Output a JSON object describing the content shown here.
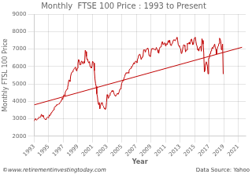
{
  "chart_data": {
    "type": "line",
    "title": "Monthly  FTSE 100 Price : 1993 to Present",
    "x_label": "Year",
    "y_label": "Monthly FTSL 100 Price",
    "annotations": [
      "©www.retirementinvestingtoday.com",
      "Data Source: Yahoo"
    ],
    "xlim": [
      1993,
      2022
    ],
    "xticks": [
      1993,
      1995,
      1997,
      1999,
      2001,
      2003,
      2005,
      2007,
      2009,
      2011,
      2013,
      2015,
      2017,
      2019,
      2021
    ],
    "ylim": [
      2000,
      9000
    ],
    "yticks": [
      2000,
      3000,
      4000,
      5000,
      6000,
      7000,
      8000,
      9000
    ],
    "grid": true,
    "series": [
      {
        "color": "#c00000",
        "x": [
          1993,
          1993.0833,
          1993.1667,
          1993.25,
          1993.3333,
          1993.4167,
          1993.5,
          1993.5833,
          1993.6667,
          1993.75,
          1993.8333,
          1993.9167,
          1994,
          1994.0833,
          1994.1667,
          1994.25,
          1994.3333,
          1994.4167,
          1994.5,
          1994.5833,
          1994.6667,
          1994.75,
          1994.8333,
          1994.9167,
          1995,
          1995.0833,
          1995.1667,
          1995.25,
          1995.3333,
          1995.4167,
          1995.5,
          1995.5833,
          1995.6667,
          1995.75,
          1995.8333,
          1995.9167,
          1996,
          1996.0833,
          1996.1667,
          1996.25,
          1996.3333,
          1996.4167,
          1996.5,
          1996.5833,
          1996.6667,
          1996.75,
          1996.8333,
          1996.9167,
          1997,
          1997.0833,
          1997.1667,
          1997.25,
          1997.3333,
          1997.4167,
          1997.5,
          1997.5833,
          1997.6667,
          1997.75,
          1997.8333,
          1997.9167,
          1998,
          1998.0833,
          1998.1667,
          1998.25,
          1998.3333,
          1998.4167,
          1998.5,
          1998.5833,
          1998.6667,
          1998.75,
          1998.8333,
          1998.9167,
          1999,
          1999.0833,
          1999.1667,
          1999.25,
          1999.3333,
          1999.4167,
          1999.5,
          1999.5833,
          1999.6667,
          1999.75,
          1999.8333,
          1999.9167,
          2000,
          2000.0833,
          2000.1667,
          2000.25,
          2000.3333,
          2000.4167,
          2000.5,
          2000.5833,
          2000.6667,
          2000.75,
          2000.8333,
          2000.9167,
          2001,
          2001.0833,
          2001.1667,
          2001.25,
          2001.3333,
          2001.4167,
          2001.5,
          2001.5833,
          2001.6667,
          2001.75,
          2001.8333,
          2001.9167,
          2002,
          2002.0833,
          2002.1667,
          2002.25,
          2002.3333,
          2002.4167,
          2002.5,
          2002.5833,
          2002.6667,
          2002.75,
          2002.8333,
          2002.9167,
          2003,
          2003.0833,
          2003.1667,
          2003.25,
          2003.3333,
          2003.4167,
          2003.5,
          2003.5833,
          2003.6667,
          2003.75,
          2003.8333,
          2003.9167,
          2004,
          2004.0833,
          2004.1667,
          2004.25,
          2004.3333,
          2004.4167,
          2004.5,
          2004.5833,
          2004.6667,
          2004.75,
          2004.8333,
          2004.9167,
          2005,
          2005.0833,
          2005.1667,
          2005.25,
          2005.3333,
          2005.4167,
          2005.5,
          2005.5833,
          2005.6667,
          2005.75,
          2005.8333,
          2005.9167,
          2006,
          2006.0833,
          2006.1667,
          2006.25,
          2006.3333,
          2006.4167,
          2006.5,
          2006.5833,
          2006.6667,
          2006.75,
          2006.8333,
          2006.9167,
          2007,
          2007.0833,
          2007.1667,
          2007.25,
          2007.3333,
          2007.4167,
          2007.5,
          2007.5833,
          2007.6667,
          2007.75,
          2007.8333,
          2007.9167,
          2008,
          2008.0833,
          2008.1667,
          2008.25,
          2008.3333,
          2008.4167,
          2008.5,
          2008.5833,
          2008.6667,
          2008.75,
          2008.8333,
          2008.9167,
          2009,
          2009.0833,
          2009.1667,
          2009.25,
          2009.3333,
          2009.4167,
          2009.5,
          2009.5833,
          2009.6667,
          2009.75,
          2009.8333,
          2009.9167,
          2010,
          2010.0833,
          2010.1667,
          2010.25,
          2010.3333,
          2010.4167,
          2010.5,
          2010.5833,
          2010.6667,
          2010.75,
          2010.8333,
          2010.9167,
          2011,
          2011.0833,
          2011.1667,
          2011.25,
          2011.3333,
          2011.4167,
          2011.5,
          2011.5833,
          2011.6667,
          2011.75,
          2011.8333,
          2011.9167,
          2012,
          2012.0833,
          2012.1667,
          2012.25,
          2012.3333,
          2012.4167,
          2012.5,
          2012.5833,
          2012.6667,
          2012.75,
          2012.8333,
          2012.9167,
          2013,
          2013.0833,
          2013.1667,
          2013.25,
          2013.3333,
          2013.4167,
          2013.5,
          2013.5833,
          2013.6667,
          2013.75,
          2013.8333,
          2013.9167,
          2014,
          2014.0833,
          2014.1667,
          2014.25,
          2014.3333,
          2014.4167,
          2014.5,
          2014.5833,
          2014.6667,
          2014.75,
          2014.8333,
          2014.9167,
          2015,
          2015.0833,
          2015.1667,
          2015.25,
          2015.3333,
          2015.4167,
          2015.5,
          2015.5833,
          2015.6667,
          2015.75,
          2015.8333,
          2015.9167,
          2016,
          2016.0833,
          2016.1667,
          2016.25,
          2016.3333,
          2016.4167,
          2016.5,
          2016.5833,
          2016.6667,
          2016.75,
          2016.8333,
          2016.9167,
          2017,
          2017.0833,
          2017.1667,
          2017.25,
          2017.3333,
          2017.4167,
          2017.5,
          2017.5833,
          2017.6667,
          2017.75,
          2017.8333,
          2017.9167,
          2018,
          2018.0833,
          2018.1667,
          2018.25,
          2018.3333,
          2018.4167,
          2018.5,
          2018.5833,
          2018.6667,
          2018.75,
          2018.8333,
          2018.9167
        ],
        "values": [
          2870,
          2960,
          3020,
          2960,
          2920,
          2970,
          3010,
          3050,
          3100,
          3080,
          3100,
          3170,
          3260,
          3150,
          3200,
          3120,
          3060,
          3010,
          2960,
          2960,
          3020,
          3070,
          3100,
          3065,
          3100,
          3230,
          3180,
          3230,
          3350,
          3390,
          3410,
          3480,
          3520,
          3640,
          3690,
          3690,
          3760,
          3820,
          3800,
          3820,
          3830,
          3870,
          3910,
          3960,
          3980,
          4090,
          4180,
          4120,
          4290,
          4380,
          4320,
          4500,
          4590,
          4640,
          4700,
          4800,
          4980,
          5220,
          5200,
          5135,
          5450,
          5590,
          5670,
          5690,
          5770,
          5820,
          5880,
          5930,
          5960,
          5780,
          5740,
          5900,
          6180,
          6400,
          6360,
          6090,
          6110,
          6220,
          6310,
          6280,
          6160,
          6270,
          6270,
          6190,
          6930,
          6850,
          6580,
          6390,
          6410,
          6240,
          6210,
          6280,
          5990,
          5980,
          5910,
          6000,
          6297,
          6254,
          6196,
          5753,
          5276,
          5019,
          4856,
          4433,
          4285,
          3941,
          3812,
          3940,
          3567,
          3721,
          3866,
          3930,
          3874,
          3764,
          3721,
          3620,
          3570,
          3530,
          3612,
          3940,
          4386,
          4296,
          4174,
          4254,
          4342,
          4478,
          4490,
          4534,
          4616,
          4556,
          4615,
          4477,
          4390,
          4320,
          4295,
          4382,
          4403,
          4464,
          4410,
          4472,
          4566,
          4700,
          4720,
          4814,
          5035,
          5114,
          5180,
          5230,
          5350,
          5430,
          5570,
          5640,
          5640,
          5600,
          5670,
          5619,
          5760,
          5840,
          5850,
          5899,
          6000,
          5990,
          6050,
          6150,
          6220,
          6150,
          6250,
          6307,
          6276,
          6210,
          6400,
          6490,
          6650,
          6689,
          6700,
          6581,
          6400,
          6500,
          6558,
          6566,
          6950,
          6950,
          6940,
          6821,
          6961,
          7014,
          6989,
          7056,
          6936,
          6622,
          6622,
          6567,
          6749,
          7000,
          7034,
          6996,
          7031,
          6984,
          6978,
          6945,
          6984,
          7090,
          7000,
          6944,
          6800,
          6750,
          7000,
          7104,
          7104,
          7120,
          7372,
          7428,
          7255,
          7300,
          7354,
          7343,
          7178,
          7312,
          7288,
          7248,
          7436,
          7494,
          7367,
          7511,
          7254,
          7201,
          7282,
          7300,
          7388,
          7510,
          7538,
          7512,
          7463,
          7547,
          7596,
          7680,
          7510,
          7255,
          7188,
          7141,
          7056,
          7009,
          6747,
          6773,
          6938,
          7136,
          7245,
          7220,
          7142,
          6832,
          6935,
          6941,
          7336,
          7279,
          7311,
          7386,
          7284,
          7411,
          7547,
          7572,
          7372,
          7246,
          7278,
          7542,
          7640,
          7674,
          7448,
          7246,
          7163,
          6938,
          7008,
          6882,
          7092,
          7118,
          7162,
          6873,
          7587,
          7488,
          7278,
          6762,
          5688,
          5766,
          6169,
          6270,
          6162,
          6025,
          5577,
          6462,
          6461,
          6713,
          6716,
          6902,
          7008,
          7087,
          7017,
          7148,
          7217,
          7284,
          7059,
          6971,
          6712,
          7010,
          7123,
          7164,
          7322,
          7623,
          7566,
          7437,
          6959,
          7100,
          7284,
          5564
        ]
      },
      {
        "color": "#c00000",
        "x": [
          1993.0,
          2021.5
        ],
        "values": [
          3800,
          7100
        ]
      }
    ]
  }
}
